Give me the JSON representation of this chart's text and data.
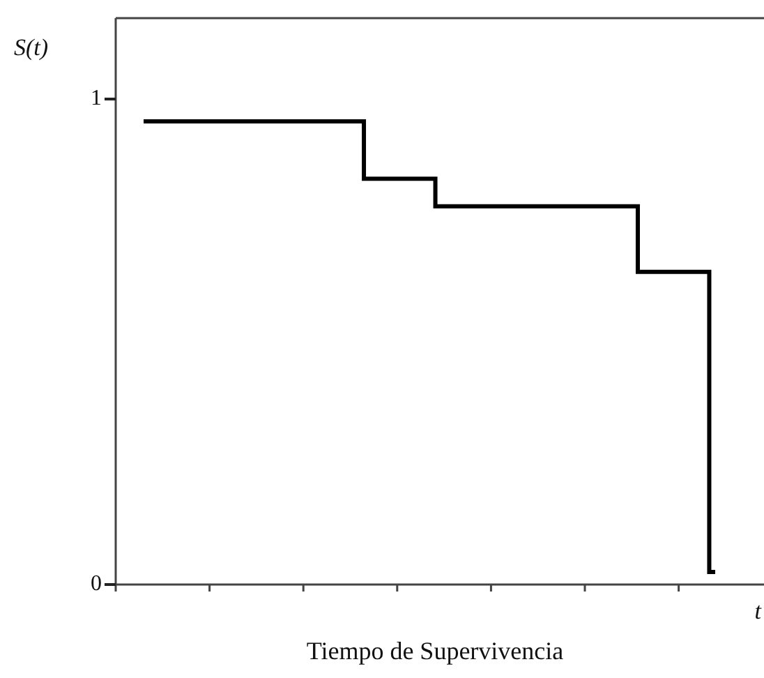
{
  "chart_data": {
    "type": "step",
    "xlabel": "Tiempo de Supervivencia",
    "ylabel": "S(t)",
    "annotations": [
      "t"
    ],
    "categories": [
      null,
      null,
      null,
      null,
      null,
      null,
      null,
      null,
      null,
      null,
      null,
      null,
      null,
      null,
      null,
      null,
      null,
      null,
      null,
      null,
      null,
      null,
      null,
      null,
      null,
      null,
      null,
      null,
      null,
      null,
      null,
      null,
      null,
      null,
      null,
      null,
      null,
      null,
      null,
      null,
      null,
      null,
      null,
      null,
      null,
      null,
      null,
      null,
      null
    ],
    "series": [
      {
        "color": "#000000",
        "values": [
          0.954,
          0.954,
          0.954,
          0.954,
          0.954,
          0.954,
          0.954,
          0.954,
          0.954,
          0.954,
          0.954,
          0.954,
          0.954,
          0.954,
          0.954,
          0.954,
          0.954,
          0.954,
          0.954,
          0.836,
          0.836,
          0.836,
          0.836,
          0.836,
          0.836,
          0.779,
          0.779,
          0.779,
          0.779,
          0.779,
          0.779,
          0.779,
          0.779,
          0.779,
          0.779,
          0.779,
          0.779,
          0.779,
          0.779,
          0.779,
          0.779,
          0.779,
          0.644,
          0.644,
          0.644,
          0.644,
          0.644,
          0.644,
          0.026
        ]
      }
    ],
    "ylim": [
      0,
      1.1667
    ],
    "yticks": [
      0,
      1
    ],
    "grid": false,
    "legend": false,
    "marker": "none",
    "line_style": "solid"
  }
}
